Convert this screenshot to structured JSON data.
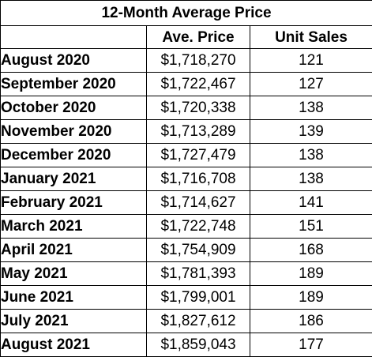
{
  "table": {
    "title": "12-Month Average Price",
    "headers": [
      "",
      "Ave. Price",
      "Unit Sales"
    ]
  },
  "chart_data": {
    "type": "table",
    "title": "12-Month Average Price",
    "columns": [
      "",
      "Ave. Price",
      "Unit Sales"
    ],
    "rows": [
      {
        "month": "August 2020",
        "price": "$1,718,270",
        "units": "121"
      },
      {
        "month": "September 2020",
        "price": "$1,722,467",
        "units": "127"
      },
      {
        "month": "October 2020",
        "price": "$1,720,338",
        "units": "138"
      },
      {
        "month": "November 2020",
        "price": "$1,713,289",
        "units": "139"
      },
      {
        "month": "December 2020",
        "price": "$1,727,479",
        "units": "138"
      },
      {
        "month": "January 2021",
        "price": "$1,716,708",
        "units": "138"
      },
      {
        "month": "February 2021",
        "price": "$1,714,627",
        "units": "141"
      },
      {
        "month": "March 2021",
        "price": "$1,722,748",
        "units": "151"
      },
      {
        "month": "April 2021",
        "price": "$1,754,909",
        "units": "168"
      },
      {
        "month": "May 2021",
        "price": "$1,781,393",
        "units": "189"
      },
      {
        "month": "June 2021",
        "price": "$1,799,001",
        "units": "189"
      },
      {
        "month": "July 2021",
        "price": "$1,827,612",
        "units": "186"
      },
      {
        "month": "August 2021",
        "price": "$1,859,043",
        "units": "177"
      }
    ]
  }
}
